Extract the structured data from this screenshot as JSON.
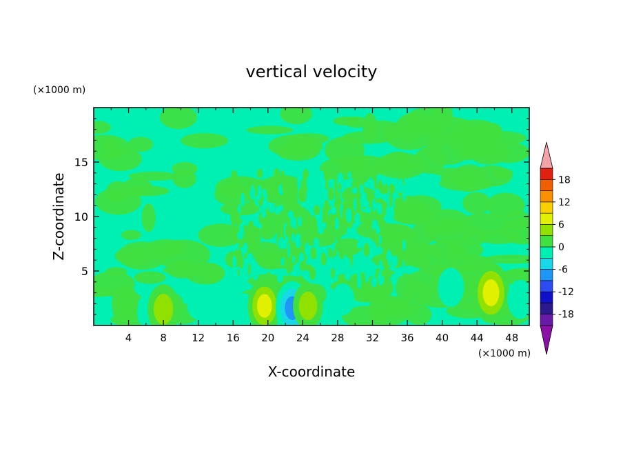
{
  "chart_data": {
    "type": "heatmap",
    "title": "vertical velocity",
    "xlabel": "X-coordinate",
    "ylabel": "Z-coordinate",
    "x_unit": "(×1000 m)",
    "y_unit": "(×1000 m)",
    "xlim": [
      0,
      50
    ],
    "ylim": [
      0,
      20
    ],
    "x_ticks": [
      4,
      8,
      12,
      16,
      20,
      24,
      28,
      32,
      36,
      40,
      44,
      48
    ],
    "x_tick_labels": [
      "4",
      "8",
      "12",
      "16",
      "20",
      "24",
      "28",
      "32",
      "36",
      "40",
      "44",
      "48"
    ],
    "y_ticks": [
      5,
      10,
      15
    ],
    "y_tick_labels": [
      "5",
      "10",
      "15"
    ],
    "colorbar": {
      "levels": [
        -21,
        -18,
        -15,
        -12,
        -9,
        -6,
        -3,
        0,
        3,
        6,
        9,
        12,
        15,
        18,
        21
      ],
      "labels": [
        "-18",
        "-12",
        "-6",
        "0",
        "6",
        "12",
        "18"
      ],
      "label_values": [
        -18,
        -12,
        -6,
        0,
        6,
        12,
        18
      ],
      "colors": [
        "#6a1aa8",
        "#2c1a8c",
        "#1010c8",
        "#2a4cf0",
        "#1e96f5",
        "#18d8e8",
        "#00f0b4",
        "#40e040",
        "#90e000",
        "#e0f000",
        "#f8d000",
        "#f89000",
        "#f06000",
        "#e02010"
      ],
      "over_color": "#f4a4a8",
      "under_color": "#8a10a8",
      "extend": "both"
    },
    "features": [
      {
        "x": 3.6,
        "z": 2.0,
        "value": 4
      },
      {
        "x": 6.4,
        "z": 1.2,
        "value": -3
      },
      {
        "x": 8.0,
        "z": 1.5,
        "value": 7
      },
      {
        "x": 12.0,
        "z": 2.0,
        "value": -2
      },
      {
        "x": 17.2,
        "z": 1.5,
        "value": -2
      },
      {
        "x": 19.6,
        "z": 1.8,
        "value": 8
      },
      {
        "x": 22.8,
        "z": 1.6,
        "value": -8
      },
      {
        "x": 24.6,
        "z": 1.8,
        "value": 6
      },
      {
        "x": 28.6,
        "z": 2.4,
        "value": -2
      },
      {
        "x": 41.0,
        "z": 3.5,
        "value": -4
      },
      {
        "x": 45.6,
        "z": 3.0,
        "value": 10
      },
      {
        "x": 49.0,
        "z": 2.4,
        "value": -4
      }
    ]
  }
}
